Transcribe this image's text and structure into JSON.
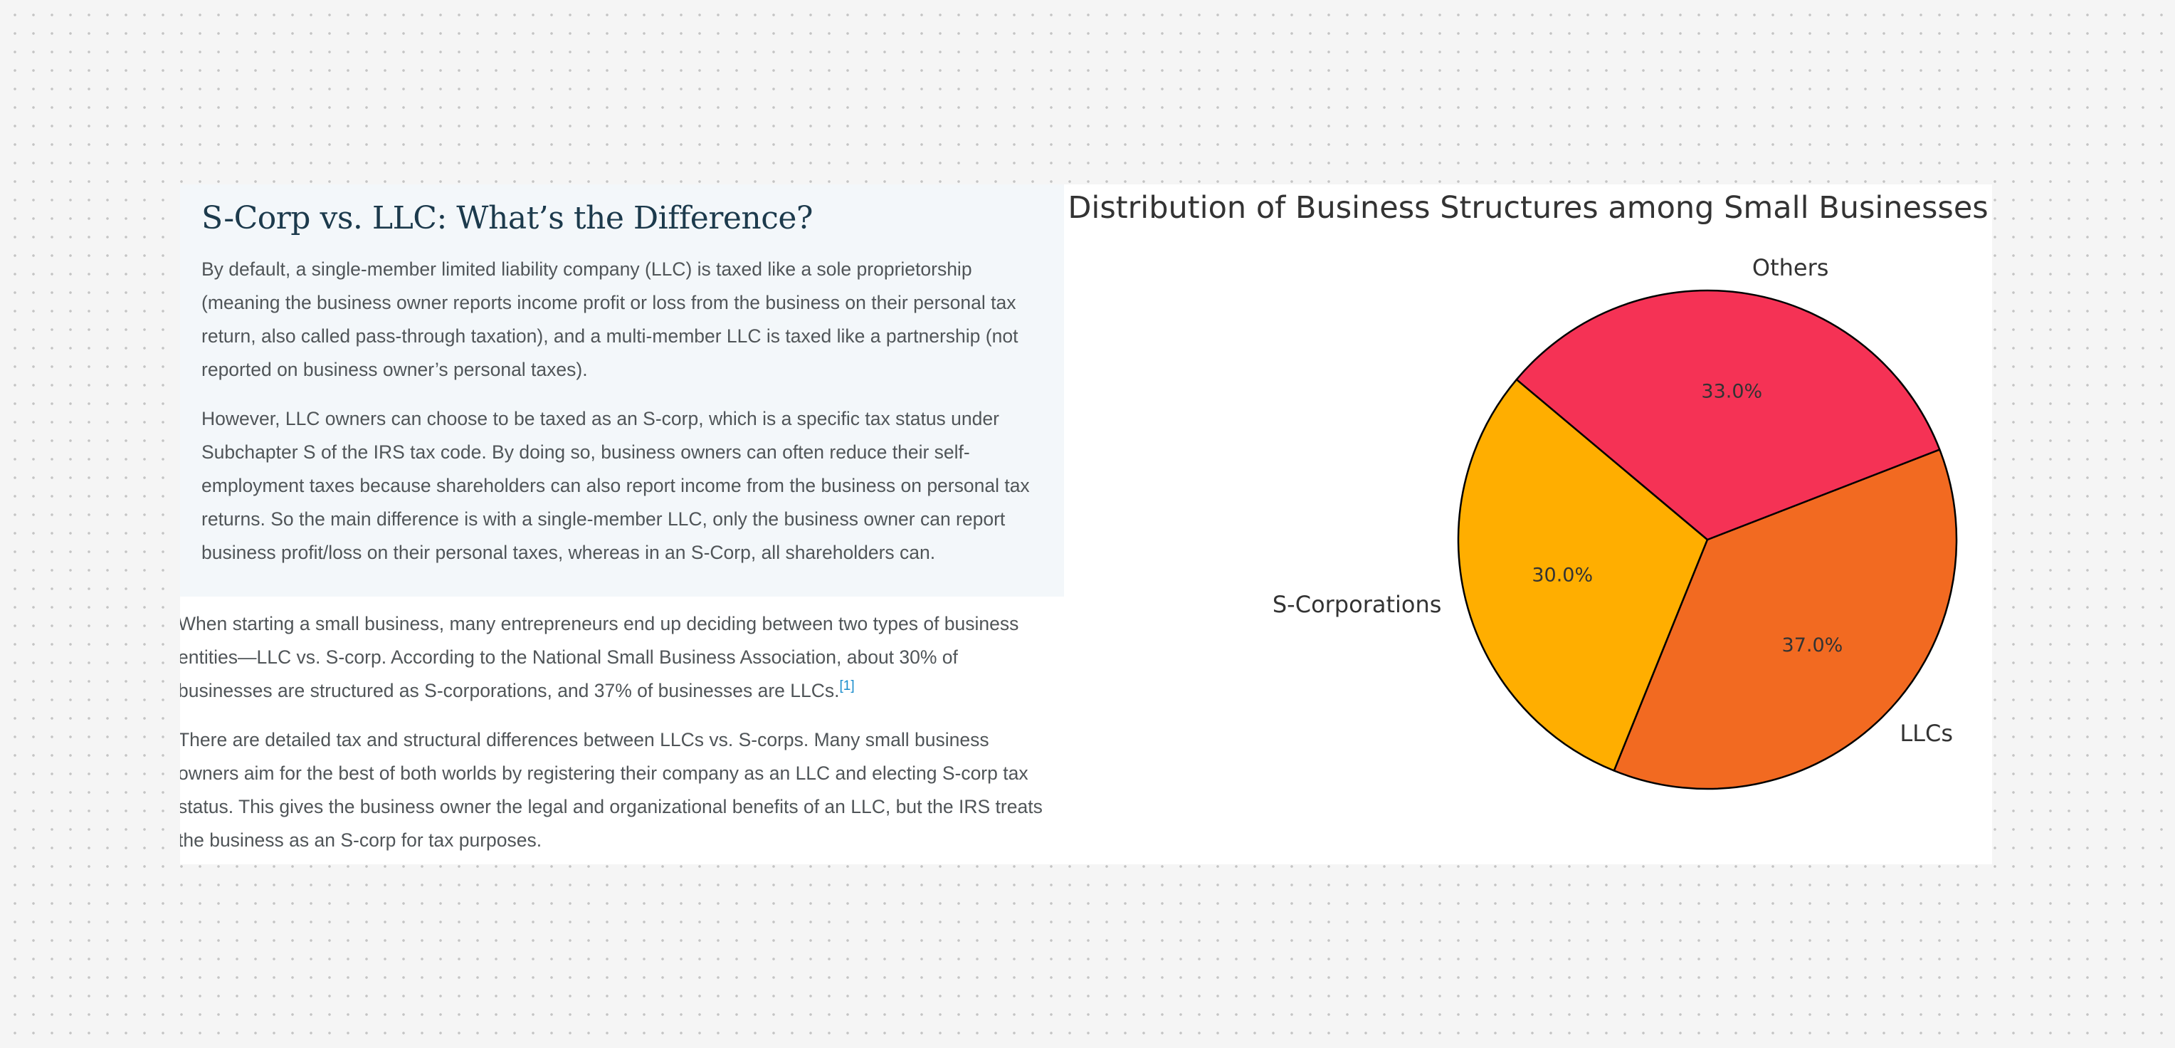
{
  "article": {
    "heading": "S-Corp vs. LLC: What’s the Difference?",
    "box_paragraphs": [
      "By default, a single-member limited liability company (LLC) is taxed like a sole proprietorship (meaning the business owner reports income profit or loss from the business on their personal tax return, also called pass-through taxation), and a multi-member LLC is taxed like a partnership (not reported on business owner’s personal taxes).",
      "However, LLC owners can choose to be taxed as an S-corp, which is a specific tax status under Subchapter S of the IRS tax code. By doing so, business owners can often reduce their self-employment taxes because shareholders can also report income from the business on personal tax returns. So the main difference is with a single-member LLC, only the business owner can report business profit/loss on their personal taxes, whereas in an S-Corp, all shareholders can."
    ],
    "paragraph_3": "When starting a small business, many entrepreneurs end up deciding between two types of business entities—LLC vs. S-corp. According to the National Small Business Association, about 30% of businesses are structured as S-corporations, and 37% of businesses are LLCs.",
    "footnote_ref": "[1]",
    "paragraph_4": "There are detailed tax and structural differences between LLCs vs. S-corps. Many small business owners aim for the best of both worlds by registering their company as an LLC and electing S-corp tax status. This gives the business owner the legal and organizational benefits of an LLC, but the IRS treats the business as an S-corp for tax purposes."
  },
  "chart_data": {
    "type": "pie",
    "title": "Distribution of Business Structures among Small Businesses",
    "categories": [
      "S-Corporations",
      "LLCs",
      "Others"
    ],
    "values": [
      30,
      37,
      33
    ],
    "value_labels": [
      "30.0%",
      "37.0%",
      "33.0%"
    ],
    "colors": [
      "#ffae00",
      "#f26a21",
      "#f53255"
    ],
    "start_angle_deg": 140,
    "direction": "counterclockwise",
    "edge_color": "#000000",
    "legend": "none"
  }
}
